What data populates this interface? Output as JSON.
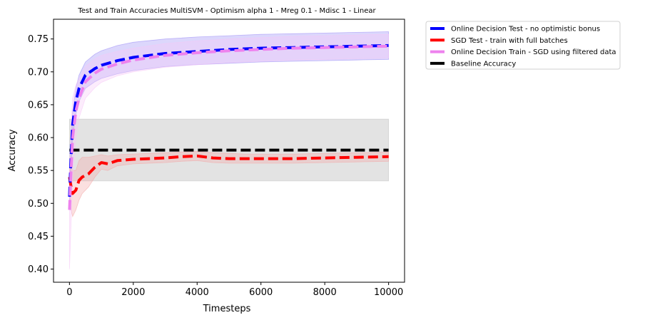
{
  "chart_data": {
    "type": "line",
    "title": "Test and Train Accuracies MultiSVM - Optimism alpha 1 - Mreg 0.1 - Mdisc 1 - Linear",
    "xlabel": "Timesteps",
    "ylabel": "Accuracy",
    "xlim": [
      -500,
      10500
    ],
    "ylim": [
      0.38,
      0.78
    ],
    "xticks": [
      0,
      2000,
      4000,
      6000,
      8000,
      10000
    ],
    "yticks": [
      0.4,
      0.45,
      0.5,
      0.55,
      0.6,
      0.65,
      0.7,
      0.75
    ],
    "grid": false,
    "legend_position": "outside-top-right",
    "series": [
      {
        "name": "Online Decision Test - no optimistic bonus",
        "color": "#0000ff",
        "band_color": "#9b8cf5",
        "x": [
          0,
          50,
          100,
          200,
          300,
          500,
          800,
          1000,
          1500,
          2000,
          3000,
          4000,
          5000,
          6000,
          7000,
          8000,
          9000,
          10000
        ],
        "y": [
          0.51,
          0.57,
          0.62,
          0.655,
          0.675,
          0.695,
          0.705,
          0.71,
          0.717,
          0.722,
          0.728,
          0.731,
          0.734,
          0.736,
          0.737,
          0.738,
          0.739,
          0.74
        ],
        "lower": [
          0.49,
          0.55,
          0.6,
          0.635,
          0.655,
          0.675,
          0.685,
          0.69,
          0.697,
          0.702,
          0.708,
          0.711,
          0.713,
          0.715,
          0.716,
          0.717,
          0.718,
          0.719
        ],
        "upper": [
          0.53,
          0.59,
          0.64,
          0.675,
          0.695,
          0.715,
          0.727,
          0.732,
          0.74,
          0.745,
          0.75,
          0.753,
          0.755,
          0.757,
          0.758,
          0.759,
          0.76,
          0.761
        ]
      },
      {
        "name": "SGD Test - train with full batches",
        "color": "#ff0000",
        "band_color": "#f4a6a6",
        "x": [
          0,
          50,
          100,
          200,
          300,
          400,
          600,
          800,
          1000,
          1200,
          1500,
          2000,
          2500,
          3000,
          3500,
          4000,
          4500,
          5000,
          5500,
          6000,
          7000,
          8000,
          9000,
          10000
        ],
        "y": [
          0.54,
          0.525,
          0.515,
          0.52,
          0.535,
          0.54,
          0.545,
          0.555,
          0.562,
          0.56,
          0.565,
          0.567,
          0.568,
          0.569,
          0.571,
          0.572,
          0.569,
          0.568,
          0.568,
          0.568,
          0.568,
          0.569,
          0.57,
          0.571
        ],
        "lower": [
          0.52,
          0.49,
          0.48,
          0.49,
          0.505,
          0.515,
          0.525,
          0.54,
          0.552,
          0.55,
          0.557,
          0.56,
          0.561,
          0.562,
          0.564,
          0.565,
          0.562,
          0.561,
          0.561,
          0.561,
          0.561,
          0.562,
          0.563,
          0.564
        ],
        "upper": [
          0.56,
          0.555,
          0.55,
          0.55,
          0.565,
          0.57,
          0.57,
          0.572,
          0.574,
          0.572,
          0.574,
          0.575,
          0.576,
          0.577,
          0.578,
          0.579,
          0.577,
          0.576,
          0.575,
          0.575,
          0.575,
          0.576,
          0.577,
          0.578
        ]
      },
      {
        "name": "Online Decision Train - SGD using filtered data",
        "color": "#ee82ee",
        "band_color": "#f7c8f7",
        "x": [
          0,
          50,
          100,
          200,
          300,
          500,
          800,
          1000,
          1500,
          2000,
          3000,
          4000,
          5000,
          6000,
          7000,
          8000,
          9000,
          10000
        ],
        "y": [
          0.49,
          0.55,
          0.6,
          0.64,
          0.66,
          0.685,
          0.698,
          0.704,
          0.712,
          0.718,
          0.725,
          0.729,
          0.732,
          0.734,
          0.736,
          0.737,
          0.738,
          0.739
        ],
        "lower": [
          0.4,
          0.47,
          0.54,
          0.6,
          0.63,
          0.66,
          0.676,
          0.684,
          0.694,
          0.7,
          0.707,
          0.711,
          0.714,
          0.716,
          0.718,
          0.719,
          0.72,
          0.721
        ],
        "upper": [
          0.56,
          0.62,
          0.66,
          0.68,
          0.69,
          0.708,
          0.72,
          0.725,
          0.731,
          0.736,
          0.743,
          0.747,
          0.75,
          0.752,
          0.754,
          0.755,
          0.756,
          0.757
        ]
      },
      {
        "name": "Baseline Accuracy",
        "color": "#000000",
        "band_color": "#c0c0c0",
        "x": [
          0,
          10000
        ],
        "y": [
          0.581,
          0.581
        ],
        "lower": [
          0.534,
          0.534
        ],
        "upper": [
          0.628,
          0.628
        ]
      }
    ]
  }
}
